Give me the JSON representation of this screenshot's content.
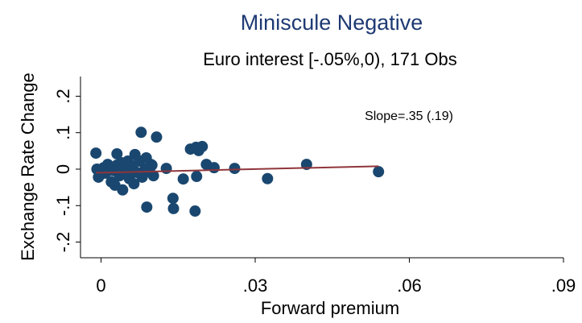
{
  "chart_data": {
    "type": "scatter",
    "title": "Miniscule Negative",
    "subtitle": "Euro interest [-.05%,0), 171 Obs",
    "x_label": "Forward premium",
    "y_label": "Exchange Rate Change",
    "annotation": "Slope=.35 (.19)",
    "xlim": [
      -0.004,
      0.09
    ],
    "ylim": [
      -0.243,
      0.254
    ],
    "xticks": [
      {
        "value": 0,
        "label": "0"
      },
      {
        "value": 0.03,
        "label": ".03"
      },
      {
        "value": 0.06,
        "label": ".06"
      },
      {
        "value": 0.09,
        "label": ".09"
      }
    ],
    "yticks": [
      {
        "value": -0.2,
        "label": "-.2"
      },
      {
        "value": -0.1,
        "label": "-.1"
      },
      {
        "value": 0,
        "label": "0"
      },
      {
        "value": 0.1,
        "label": ".1"
      },
      {
        "value": 0.2,
        "label": ".2"
      }
    ],
    "series": [
      {
        "color": "#1a476f",
        "x": [
          -0.001,
          0.0078,
          0.0108,
          0.0174,
          0.0185,
          0.0197,
          0.019,
          0.0205,
          0.022,
          0.026,
          0.0324,
          0.04,
          0.054,
          0.0089,
          0.014,
          0.0141,
          0.0183,
          0.0042,
          0.016,
          0.0186,
          0.0127,
          0.0031,
          0.0066,
          0.0088,
          0.0097,
          0.0102,
          -0.0008,
          -0.0005,
          0.0008,
          0.0013,
          0.002,
          0.0024,
          0.0031,
          0.0036,
          0.0047,
          0.0052,
          0.0055,
          0.0061,
          0.0064,
          0.007,
          0.0075,
          0.008,
          0.0086,
          0.0094,
          0.0099,
          0.0005,
          0.0016,
          0.0039,
          0.0058,
          0,
          0.0027
        ],
        "values": [
          0.044,
          0.101,
          0.088,
          0.055,
          0.06,
          0.062,
          0.051,
          0.013,
          0.004,
          0.002,
          -0.026,
          0.013,
          -0.007,
          -0.104,
          -0.08,
          -0.108,
          -0.115,
          -0.057,
          -0.027,
          -0.02,
          0.002,
          0.042,
          0.04,
          0.031,
          0.013,
          -0.018,
          0,
          -0.022,
          -0.011,
          0.013,
          -0.035,
          -0.004,
          0.011,
          -0.018,
          0,
          0.022,
          -0.026,
          0.009,
          -0.04,
          -0.009,
          0.022,
          -0.022,
          0,
          -0.007,
          0.011,
          0.004,
          -0.004,
          0.018,
          -0.004,
          -0.007,
          -0.044
        ]
      },
      {
        "type": "line",
        "color": "#90353b",
        "x": [
          -0.001,
          0.054
        ],
        "values": [
          -0.01,
          0.008
        ]
      }
    ]
  }
}
